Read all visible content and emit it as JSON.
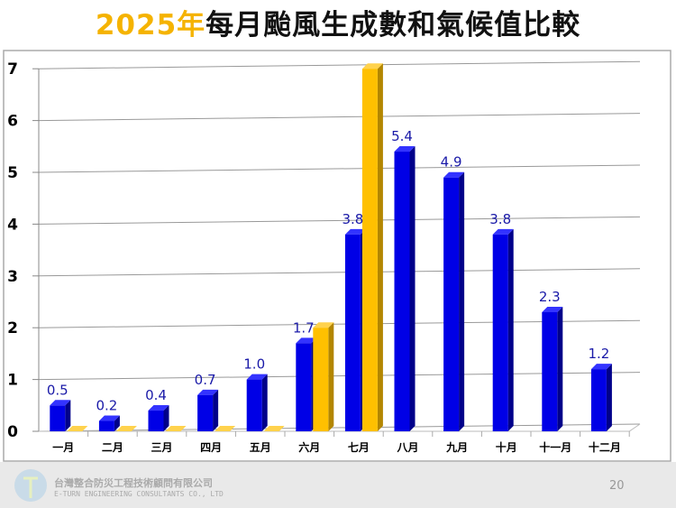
{
  "title": {
    "year": "2025年",
    "rest": "每月颱風生成數和氣候值比較"
  },
  "chart_data": {
    "type": "bar",
    "categories": [
      "一月",
      "二月",
      "三月",
      "四月",
      "五月",
      "六月",
      "七月",
      "八月",
      "九月",
      "十月",
      "十一月",
      "十二月"
    ],
    "series": [
      {
        "values": [
          0.5,
          0.2,
          0.4,
          0.7,
          1.0,
          1.7,
          3.8,
          5.4,
          4.9,
          3.8,
          2.3,
          1.2
        ],
        "color": "#0000E6",
        "labels": [
          "0.5",
          "0.2",
          "0.4",
          "0.7",
          "1.0",
          "1.7",
          "3.8",
          "5.4",
          "4.9",
          "3.8",
          "2.3",
          "1.2"
        ]
      },
      {
        "values": [
          0,
          0,
          0,
          0,
          0,
          2,
          7,
          null,
          null,
          null,
          null,
          null
        ],
        "color": "#FFC000"
      }
    ],
    "ylim": [
      0,
      7
    ],
    "yticks": [
      "0",
      "1",
      "2",
      "3",
      "4",
      "5",
      "6",
      "7"
    ],
    "grid": true,
    "style": "3d"
  },
  "footer": {
    "company": "台灣整合防災工程技術顧問有限公司",
    "company_en": "E-TURN ENGINEERING CONSULTANTS CO., LTD",
    "page": "20"
  }
}
